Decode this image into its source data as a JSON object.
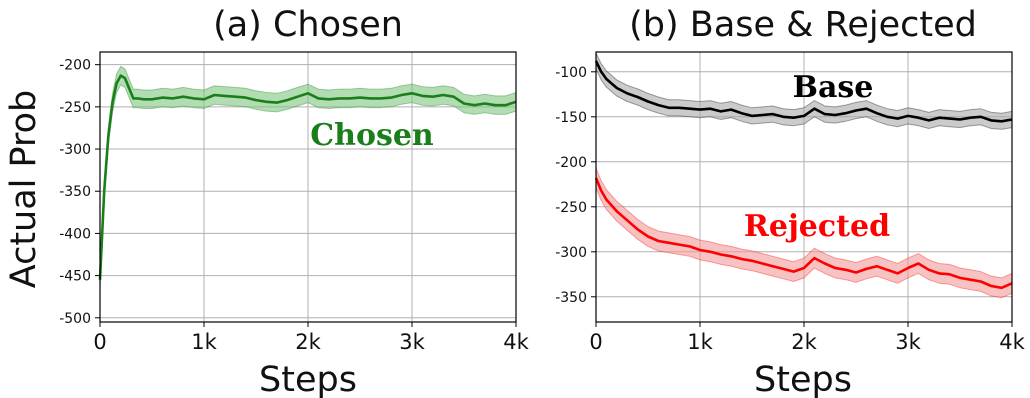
{
  "chart_data": [
    {
      "type": "line",
      "title": "(a) Chosen",
      "xlabel": "Steps",
      "ylabel": "Actual Prob",
      "xlim": [
        0,
        4000
      ],
      "ylim": [
        -505,
        -185
      ],
      "grid": true,
      "x_ticks": [
        0,
        1000,
        2000,
        3000,
        4000
      ],
      "x_tick_labels": [
        "0",
        "1k",
        "2k",
        "3k",
        "4k"
      ],
      "y_ticks": [
        -500,
        -450,
        -400,
        -350,
        -300,
        -250,
        -200
      ],
      "y_tick_labels": [
        "-500",
        "-450",
        "-400",
        "-350",
        "-300",
        "-250",
        "-200"
      ],
      "series": [
        {
          "name": "Chosen",
          "color": "#1a7f1a",
          "band_color": "#7fc47f",
          "band_halfwidth": 11,
          "x": [
            0,
            40,
            80,
            120,
            160,
            200,
            240,
            280,
            320,
            360,
            420,
            500,
            600,
            700,
            800,
            900,
            1000,
            1100,
            1200,
            1300,
            1400,
            1500,
            1600,
            1700,
            1800,
            1900,
            2000,
            2100,
            2200,
            2300,
            2400,
            2500,
            2600,
            2700,
            2800,
            2900,
            3000,
            3100,
            3200,
            3300,
            3400,
            3500,
            3600,
            3700,
            3800,
            3900,
            4000
          ],
          "y": [
            -455,
            -350,
            -285,
            -245,
            -222,
            -213,
            -216,
            -228,
            -240,
            -240,
            -241,
            -241,
            -239,
            -240,
            -238,
            -240,
            -241,
            -236,
            -237,
            -238,
            -239,
            -242,
            -244,
            -245,
            -242,
            -238,
            -234,
            -240,
            -241,
            -240,
            -240,
            -239,
            -240,
            -240,
            -239,
            -236,
            -234,
            -237,
            -238,
            -236,
            -238,
            -246,
            -248,
            -246,
            -248,
            -248,
            -244
          ]
        }
      ],
      "annotations": [
        {
          "text": "Chosen",
          "color": "#1a7f1a"
        }
      ]
    },
    {
      "type": "line",
      "title": "(b) Base & Rejected",
      "xlabel": "Steps",
      "ylabel": "",
      "xlim": [
        0,
        4000
      ],
      "ylim": [
        -378,
        -78
      ],
      "grid": true,
      "x_ticks": [
        0,
        1000,
        2000,
        3000,
        4000
      ],
      "x_tick_labels": [
        "0",
        "1k",
        "2k",
        "3k",
        "4k"
      ],
      "y_ticks": [
        -350,
        -300,
        -250,
        -200,
        -150,
        -100
      ],
      "y_tick_labels": [
        "-350",
        "-300",
        "-250",
        "-200",
        "-150",
        "-100"
      ],
      "series": [
        {
          "name": "Base",
          "color": "#000000",
          "band_color": "#a8a8a8",
          "band_halfwidth": 9,
          "x": [
            0,
            50,
            100,
            200,
            300,
            400,
            500,
            600,
            700,
            800,
            900,
            1000,
            1100,
            1200,
            1300,
            1400,
            1500,
            1600,
            1700,
            1800,
            1900,
            2000,
            2100,
            2200,
            2300,
            2400,
            2500,
            2600,
            2700,
            2800,
            2900,
            3000,
            3100,
            3200,
            3300,
            3400,
            3500,
            3600,
            3700,
            3800,
            3900,
            4000
          ],
          "y": [
            -88,
            -100,
            -108,
            -118,
            -124,
            -128,
            -133,
            -137,
            -140,
            -140,
            -141,
            -142,
            -141,
            -144,
            -142,
            -146,
            -149,
            -148,
            -147,
            -150,
            -151,
            -149,
            -141,
            -147,
            -148,
            -146,
            -143,
            -141,
            -146,
            -150,
            -152,
            -149,
            -151,
            -154,
            -151,
            -152,
            -153,
            -151,
            -150,
            -154,
            -155,
            -153
          ]
        },
        {
          "name": "Rejected",
          "color": "#ff0000",
          "band_color": "#f29a9a",
          "band_halfwidth": 11,
          "x": [
            0,
            50,
            100,
            200,
            300,
            400,
            500,
            600,
            700,
            800,
            900,
            1000,
            1100,
            1200,
            1300,
            1400,
            1500,
            1600,
            1700,
            1800,
            1900,
            2000,
            2100,
            2200,
            2300,
            2400,
            2500,
            2600,
            2700,
            2800,
            2900,
            3000,
            3100,
            3200,
            3300,
            3400,
            3500,
            3600,
            3700,
            3800,
            3900,
            4000
          ],
          "y": [
            -218,
            -232,
            -242,
            -255,
            -265,
            -275,
            -283,
            -288,
            -290,
            -292,
            -294,
            -298,
            -300,
            -303,
            -305,
            -308,
            -310,
            -313,
            -316,
            -319,
            -322,
            -318,
            -307,
            -313,
            -318,
            -320,
            -323,
            -319,
            -316,
            -320,
            -324,
            -318,
            -313,
            -320,
            -324,
            -325,
            -329,
            -331,
            -333,
            -338,
            -340,
            -335
          ]
        }
      ],
      "annotations": [
        {
          "text": "Base",
          "color": "#000000"
        },
        {
          "text": "Rejected",
          "color": "#ff0000"
        }
      ]
    }
  ]
}
